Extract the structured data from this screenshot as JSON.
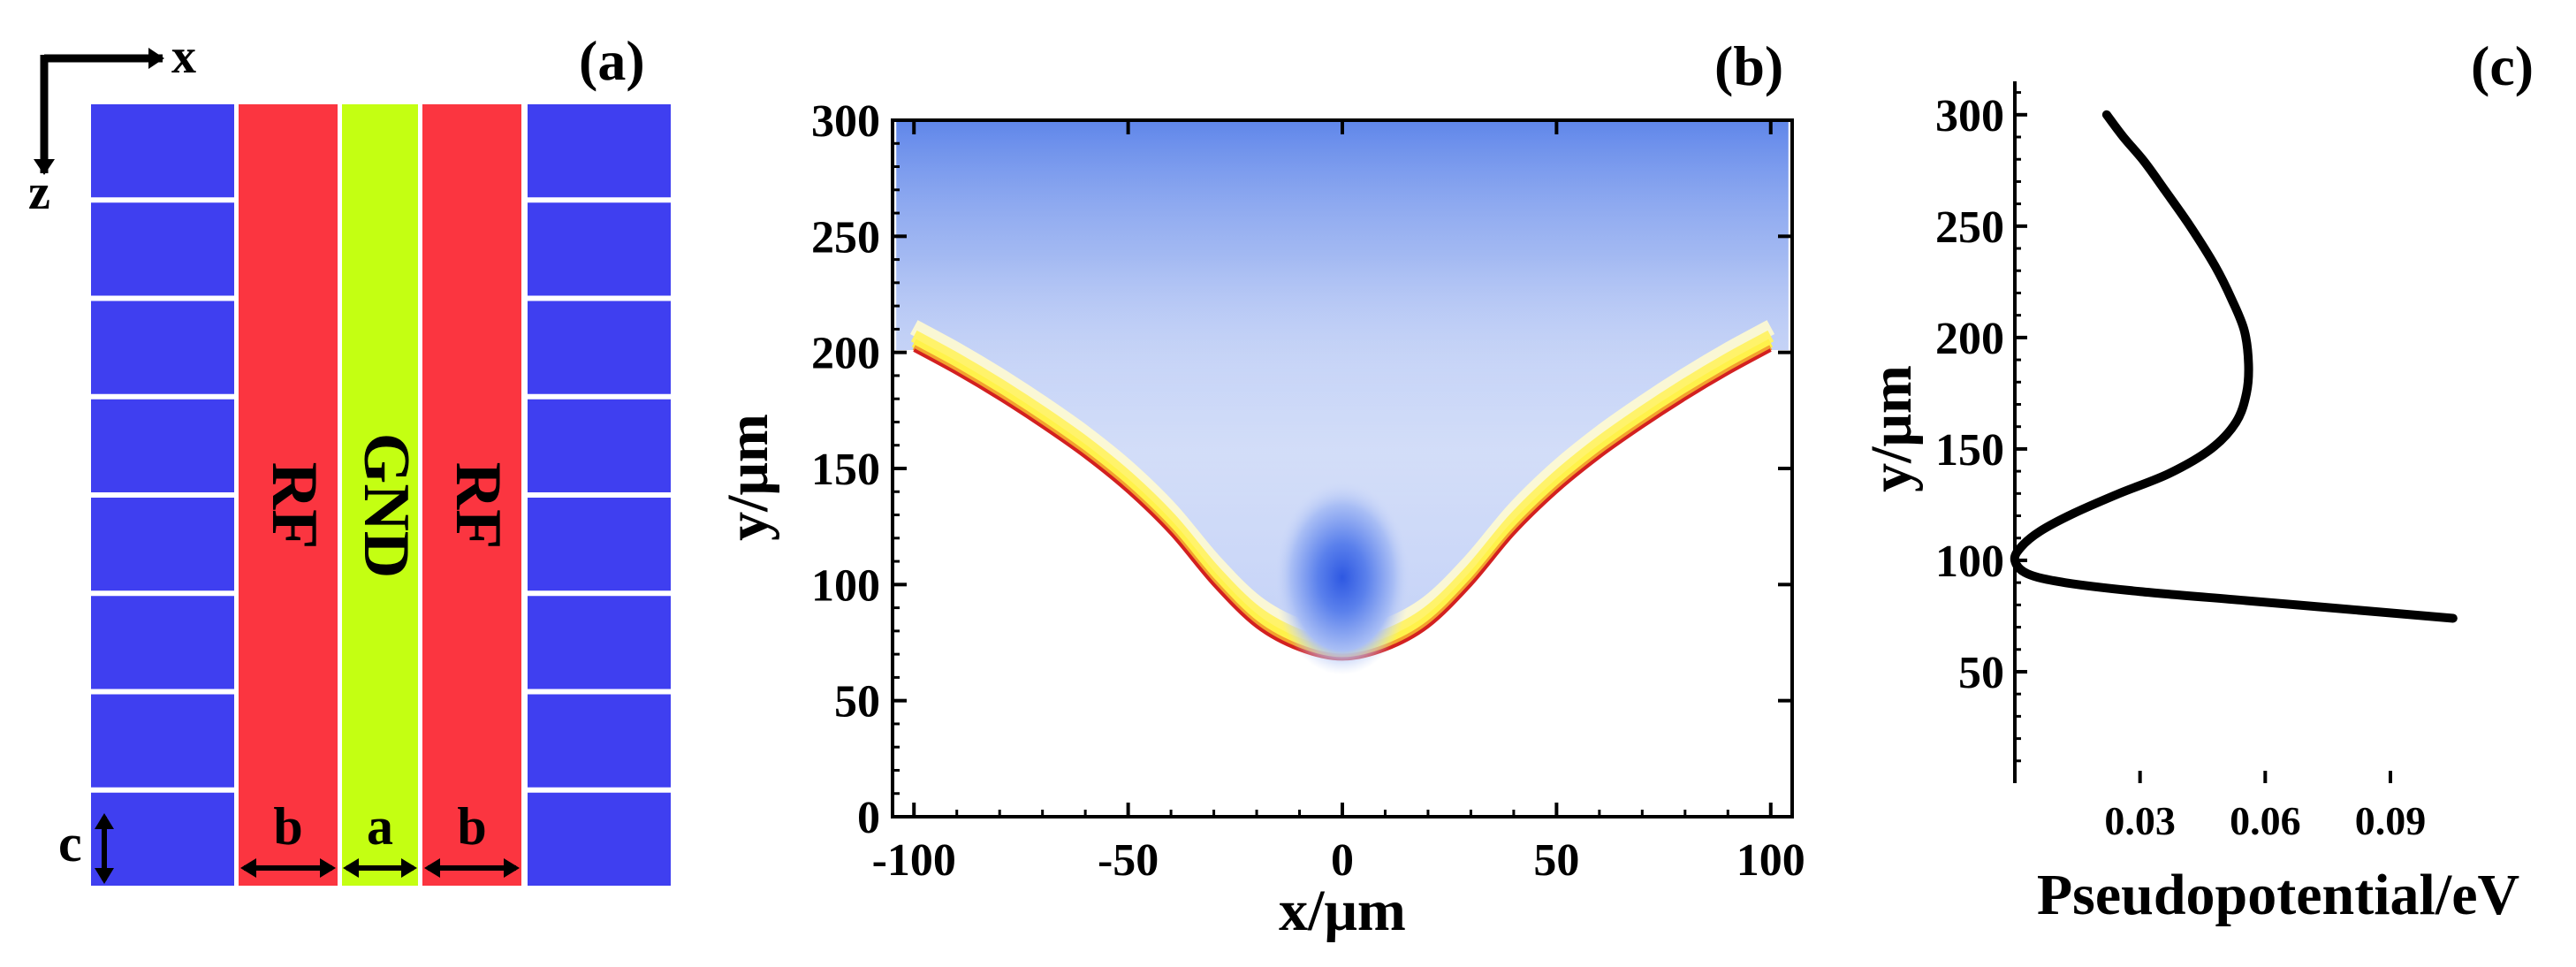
{
  "figure": {
    "panels": {
      "a": {
        "tag": "(a)",
        "axis_x": "x",
        "axis_z": "z",
        "electrodes": {
          "rf_left": "RF",
          "gnd": "GND",
          "rf_right": "RF"
        },
        "dimensions": {
          "a": "a",
          "b_left": "b",
          "b_right": "b",
          "c": "c"
        },
        "segments_per_side": 8,
        "colors": {
          "dc": "#3f3ff0",
          "rf": "#fb3540",
          "gnd": "#c4ff12"
        }
      }
    }
  },
  "chart_data": [
    {
      "type": "contour",
      "panel": "(b)",
      "xlabel": "x/μm",
      "ylabel": "y/μm",
      "xlim": [
        -105,
        105
      ],
      "ylim": [
        0,
        300
      ],
      "xticks": [
        -100,
        -50,
        0,
        50,
        100
      ],
      "yticks": [
        0,
        50,
        100,
        150,
        200,
        250,
        300
      ],
      "x_tick_labels": [
        "-100",
        "-50",
        "0",
        "50",
        "100"
      ],
      "y_tick_labels": [
        "0",
        "50",
        "100",
        "150",
        "200",
        "250",
        "300"
      ],
      "minimum": {
        "x": 0,
        "y": 103
      },
      "boundary_curve": {
        "x": [
          -100,
          -90,
          -80,
          -70,
          -60,
          -50,
          -40,
          -30,
          -20,
          -10,
          0,
          10,
          20,
          30,
          40,
          50,
          60,
          70,
          80,
          90,
          100
        ],
        "y": [
          201,
          191,
          180,
          168,
          155,
          140,
          122,
          100,
          82,
          72,
          68,
          72,
          82,
          100,
          122,
          140,
          155,
          168,
          180,
          191,
          201
        ]
      },
      "colors": [
        "#5577e6",
        "#e8eefa",
        "#fff24a",
        "#d32020"
      ]
    },
    {
      "type": "line",
      "panel": "(c)",
      "xlabel": "Pseudopotential/eV",
      "ylabel": "y/μm",
      "xlim": [
        0,
        0.108
      ],
      "ylim": [
        0,
        315
      ],
      "xticks": [
        0.03,
        0.06,
        0.09
      ],
      "yticks": [
        50,
        100,
        150,
        200,
        250,
        300
      ],
      "x_tick_labels": [
        "0.03",
        "0.06",
        "0.09"
      ],
      "y_tick_labels": [
        "50",
        "100",
        "150",
        "200",
        "250",
        "300"
      ],
      "series": [
        {
          "name": "pseudopotential",
          "x": [
            0.022,
            0.026,
            0.031,
            0.036,
            0.042,
            0.048,
            0.052,
            0.055,
            0.056,
            0.0555,
            0.053,
            0.047,
            0.037,
            0.025,
            0.014,
            0.006,
            0.0015,
            0.0,
            0.003,
            0.012,
            0.03,
            0.055,
            0.08,
            0.105
          ],
          "y": [
            300,
            290,
            279,
            266,
            250,
            232,
            217,
            203,
            188,
            175,
            162,
            150,
            139,
            130,
            121,
            113,
            106,
            100,
            94,
            90,
            86,
            82,
            78,
            74
          ]
        }
      ]
    }
  ]
}
